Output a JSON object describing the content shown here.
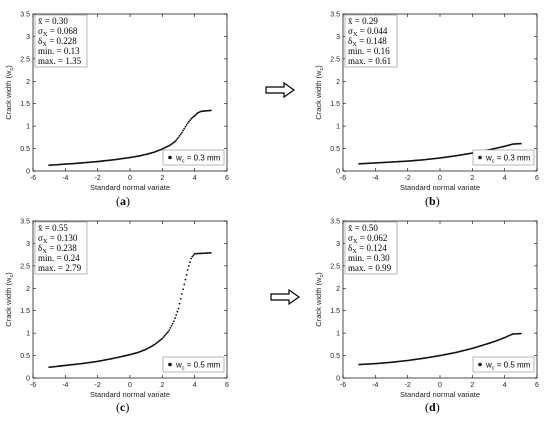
{
  "colors": {
    "data": "#111111",
    "axis": "#000000",
    "box": "#888888"
  },
  "arrow_icon": "right-arrow-icon",
  "chart_data": [
    {
      "id": "a",
      "type": "scatter",
      "caption": "a",
      "xlabel": "Standard normal variate",
      "ylabel": "Crack width (w",
      "ylabel_sub": "c",
      "ylabel_close": ")",
      "xlim": [
        -6,
        6
      ],
      "ylim": [
        0,
        3.5
      ],
      "xticks": [
        -6,
        -4,
        -2,
        0,
        2,
        4,
        6
      ],
      "yticks": [
        0,
        0.5,
        1,
        1.5,
        2,
        2.5,
        3,
        3.5
      ],
      "ytick_labels": [
        "0",
        "0.5",
        "1",
        "1.5",
        "2",
        "2.5",
        "3",
        "3.5"
      ],
      "stats": [
        "x̄ = 0.30",
        "σX = 0.068",
        "δX = 0.228",
        "min. = 0.13",
        "max. = 1.35"
      ],
      "legend": "wc = 0.3 mm",
      "legend_main": "w",
      "legend_sub": "c",
      "legend_rest": " = 0.3 mm",
      "legend_position": "bottom-right",
      "series": [
        {
          "curve": [
            [
              -5.0,
              0.13
            ],
            [
              -4.5,
              0.14
            ],
            [
              -4,
              0.155
            ],
            [
              -3.5,
              0.165
            ],
            [
              -3,
              0.18
            ],
            [
              -2.5,
              0.195
            ],
            [
              -2,
              0.21
            ],
            [
              -1.5,
              0.23
            ],
            [
              -1,
              0.25
            ],
            [
              -0.5,
              0.275
            ],
            [
              0,
              0.3
            ],
            [
              0.5,
              0.33
            ],
            [
              1,
              0.37
            ],
            [
              1.5,
              0.42
            ],
            [
              2,
              0.49
            ],
            [
              2.5,
              0.58
            ],
            [
              2.8,
              0.66
            ],
            [
              3.0,
              0.75
            ],
            [
              3.2,
              0.85
            ],
            [
              3.4,
              0.97
            ],
            [
              3.6,
              1.08
            ],
            [
              3.8,
              1.17
            ],
            [
              4.0,
              1.23
            ],
            [
              4.2,
              1.3
            ],
            [
              4.4,
              1.33
            ],
            [
              5.0,
              1.35
            ]
          ]
        }
      ]
    },
    {
      "id": "b",
      "type": "scatter",
      "caption": "b",
      "xlabel": "Standard normal variate",
      "ylabel": "Crack width (w",
      "ylabel_sub": "c",
      "ylabel_close": ")",
      "xlim": [
        -6,
        6
      ],
      "ylim": [
        0,
        3.5
      ],
      "xticks": [
        -6,
        -4,
        -2,
        0,
        2,
        4,
        6
      ],
      "yticks": [
        0,
        0.5,
        1,
        1.5,
        2,
        2.5,
        3,
        3.5
      ],
      "ytick_labels": [
        "0",
        "0.5",
        "1",
        "1.5",
        "2",
        "2.5",
        "3",
        "3.5"
      ],
      "stats": [
        "x̄ = 0.29",
        "σX = 0.044",
        "δX = 0.148",
        "min. = 0.16",
        "max. = 0.61"
      ],
      "legend": "wc = 0.3 mm",
      "legend_main": "w",
      "legend_sub": "c",
      "legend_rest": " = 0.3 mm",
      "legend_position": "bottom-right",
      "series": [
        {
          "curve": [
            [
              -5.0,
              0.16
            ],
            [
              -4.5,
              0.17
            ],
            [
              -4,
              0.18
            ],
            [
              -3,
              0.2
            ],
            [
              -2,
              0.22
            ],
            [
              -1,
              0.25
            ],
            [
              0,
              0.29
            ],
            [
              1,
              0.34
            ],
            [
              2,
              0.4
            ],
            [
              3,
              0.47
            ],
            [
              3.5,
              0.51
            ],
            [
              4.0,
              0.55
            ],
            [
              4.3,
              0.58
            ],
            [
              4.5,
              0.6
            ],
            [
              5.0,
              0.61
            ]
          ]
        }
      ]
    },
    {
      "id": "c",
      "type": "scatter",
      "caption": "c",
      "xlabel": "Standard normal variate",
      "ylabel": "Crack width (w",
      "ylabel_sub": "c",
      "ylabel_close": ")",
      "xlim": [
        -6,
        6
      ],
      "ylim": [
        0,
        3.5
      ],
      "xticks": [
        -6,
        -4,
        -2,
        0,
        2,
        4,
        6
      ],
      "yticks": [
        0,
        0.5,
        1,
        1.5,
        2,
        2.5,
        3,
        3.5
      ],
      "ytick_labels": [
        "0",
        "0.5",
        "1",
        "1.5",
        "2",
        "2.5",
        "3",
        "3.5"
      ],
      "stats": [
        "x̄ = 0.55",
        "σX = 0.130",
        "δX = 0.238",
        "min. = 0.24",
        "max. = 2.79"
      ],
      "legend": "wc = 0.5 mm",
      "legend_main": "w",
      "legend_sub": "c",
      "legend_rest": " = 0.5 mm",
      "legend_position": "bottom-right",
      "series": [
        {
          "curve": [
            [
              -5.0,
              0.24
            ],
            [
              -4.5,
              0.26
            ],
            [
              -4,
              0.28
            ],
            [
              -3,
              0.32
            ],
            [
              -2,
              0.37
            ],
            [
              -1,
              0.44
            ],
            [
              0,
              0.52
            ],
            [
              0.5,
              0.57
            ],
            [
              1,
              0.64
            ],
            [
              1.5,
              0.74
            ],
            [
              2,
              0.88
            ],
            [
              2.4,
              1.05
            ],
            [
              2.7,
              1.25
            ],
            [
              3.0,
              1.55
            ],
            [
              3.2,
              1.85
            ],
            [
              3.4,
              2.15
            ],
            [
              3.6,
              2.45
            ],
            [
              3.8,
              2.68
            ],
            [
              4.0,
              2.77
            ],
            [
              5.0,
              2.79
            ]
          ]
        }
      ]
    },
    {
      "id": "d",
      "type": "scatter",
      "caption": "d",
      "xlabel": "Standard normal variate",
      "ylabel": "Crack width (w",
      "ylabel_sub": "c",
      "ylabel_close": ")",
      "xlim": [
        -6,
        6
      ],
      "ylim": [
        0,
        3.5
      ],
      "xticks": [
        -6,
        -4,
        -2,
        0,
        2,
        4,
        6
      ],
      "yticks": [
        0,
        0.5,
        1,
        1.5,
        2,
        2.5,
        3,
        3.5
      ],
      "ytick_labels": [
        "0",
        "0.5",
        "1",
        "1.5",
        "2",
        "2.5",
        "3",
        "3.5"
      ],
      "stats": [
        "x̄ = 0.50",
        "σX = 0.062",
        "δX = 0.124",
        "min. = 0.30",
        "max. = 0.99"
      ],
      "legend": "wc = 0.5 mm",
      "legend_main": "w",
      "legend_sub": "c",
      "legend_rest": " = 0.5 mm",
      "legend_position": "bottom-right",
      "series": [
        {
          "curve": [
            [
              -5.0,
              0.3
            ],
            [
              -4.5,
              0.31
            ],
            [
              -4,
              0.32
            ],
            [
              -3,
              0.35
            ],
            [
              -2,
              0.39
            ],
            [
              -1,
              0.44
            ],
            [
              0,
              0.5
            ],
            [
              1,
              0.57
            ],
            [
              2,
              0.66
            ],
            [
              3,
              0.77
            ],
            [
              3.5,
              0.83
            ],
            [
              4.0,
              0.9
            ],
            [
              4.3,
              0.95
            ],
            [
              4.5,
              0.98
            ],
            [
              5.0,
              0.99
            ]
          ]
        }
      ]
    }
  ]
}
